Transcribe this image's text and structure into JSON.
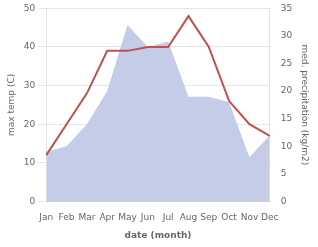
{
  "chart_data": {
    "type": "line",
    "categories": [
      "Jan",
      "Feb",
      "Mar",
      "Apr",
      "May",
      "Jun",
      "Jul",
      "Aug",
      "Sep",
      "Oct",
      "Nov",
      "Dec"
    ],
    "xlabel": "date (month)",
    "ylabel": "max temp (C)",
    "y2label": "med. precipitation (kg/m2)",
    "series": [
      {
        "type": "area",
        "axis": "y2",
        "color": "#c5cce8",
        "values": [
          9,
          10,
          14,
          20,
          32,
          28,
          29,
          19,
          19,
          18,
          8,
          12
        ]
      },
      {
        "type": "line",
        "color": "#c0504d",
        "values": [
          12,
          20,
          28,
          39,
          39,
          40,
          40,
          48,
          40,
          26,
          20,
          17
        ]
      }
    ],
    "ylim": [
      0,
      50
    ],
    "yticks": [
      0,
      10,
      20,
      30,
      40,
      50
    ],
    "y2lim": [
      0,
      35
    ],
    "y2ticks": [
      0,
      5,
      10,
      15,
      20,
      25,
      30,
      35
    ],
    "grid": true
  }
}
